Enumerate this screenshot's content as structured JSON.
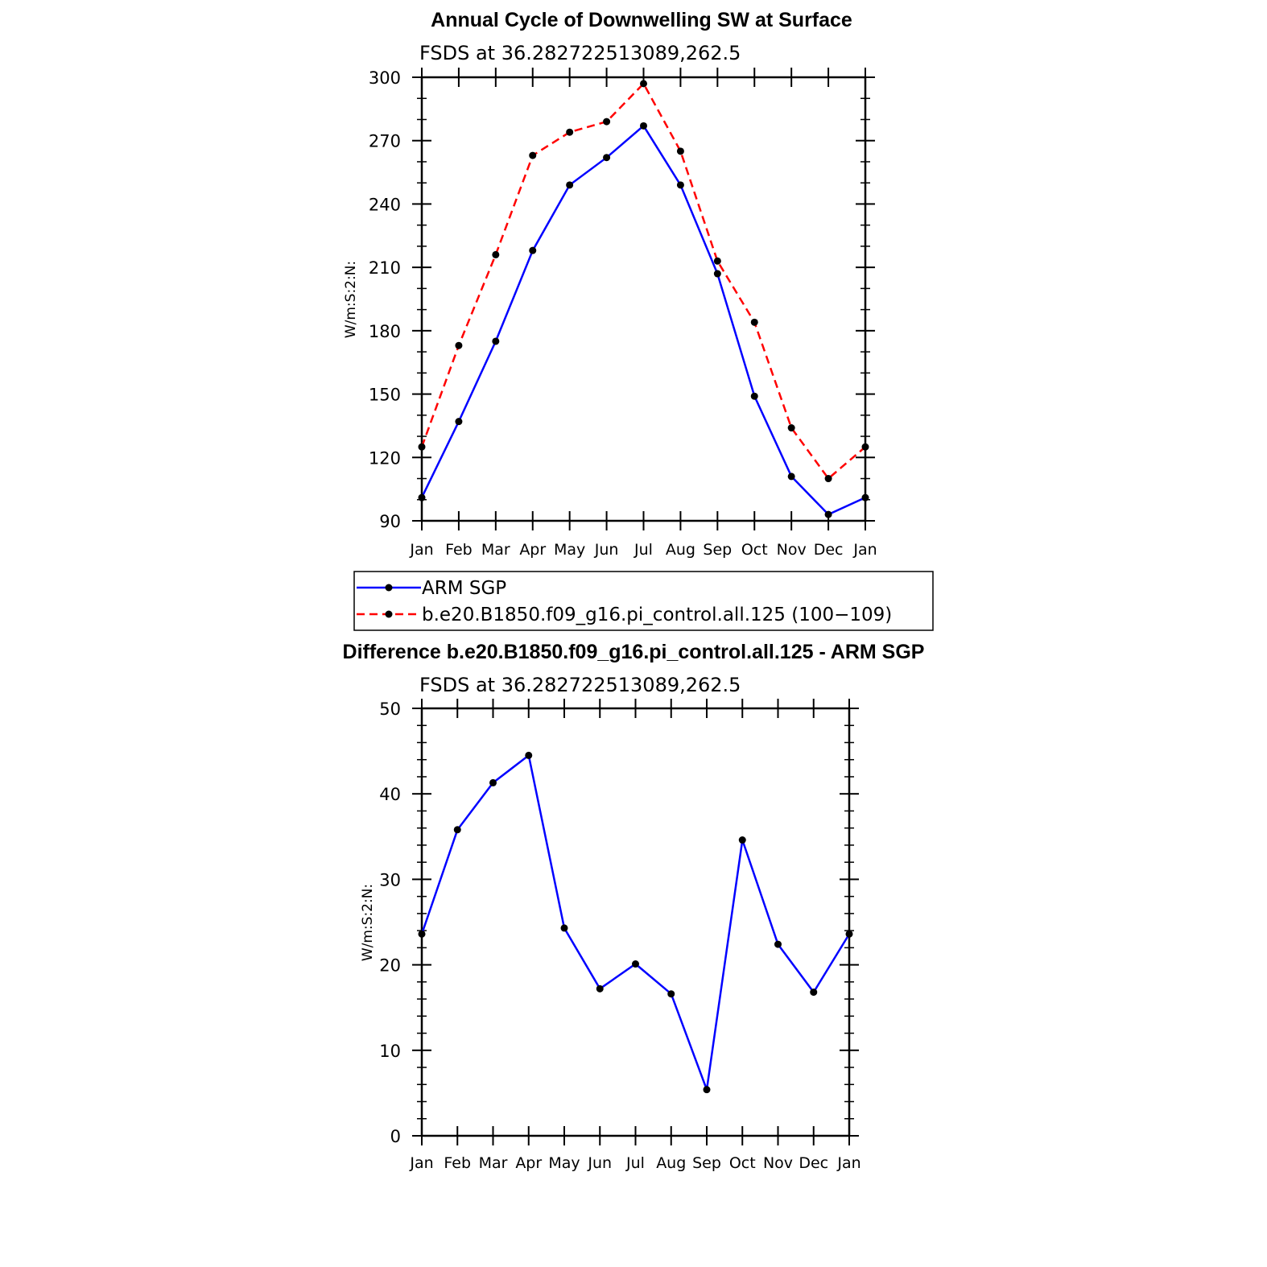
{
  "chart_data": [
    {
      "type": "line",
      "title": "Annual Cycle of Downwelling SW at Surface",
      "subtitle": "FSDS at 36.282722513089,262.5",
      "ylabel": "W/m:S:2:N:",
      "ylim": [
        90,
        300
      ],
      "yticks": [
        "90",
        "120",
        "150",
        "180",
        "210",
        "240",
        "270",
        "300"
      ],
      "categories": [
        "Jan",
        "Feb",
        "Mar",
        "Apr",
        "May",
        "Jun",
        "Jul",
        "Aug",
        "Sep",
        "Oct",
        "Nov",
        "Dec",
        "Jan"
      ],
      "series": [
        {
          "name": "ARM SGP",
          "color": "#0000ff",
          "dash": "solid",
          "values": [
            101,
            137,
            175,
            218,
            249,
            262,
            277,
            249,
            207,
            149,
            111,
            93,
            101
          ]
        },
        {
          "name": "b.e20.B1850.f09_g16.pi_control.all.125 (100−109)",
          "color": "#ff0000",
          "dash": "dashed",
          "values": [
            125,
            173,
            216,
            263,
            274,
            279,
            297,
            265,
            213,
            184,
            134,
            110,
            125
          ]
        }
      ],
      "legend_position": "below"
    },
    {
      "type": "line",
      "title": "Difference b.e20.B1850.f09_g16.pi_control.all.125 - ARM SGP",
      "subtitle": "FSDS at 36.282722513089,262.5",
      "ylabel": "W/m:S:2:N:",
      "ylim": [
        0,
        50
      ],
      "yticks": [
        "0",
        "10",
        "20",
        "30",
        "40",
        "50"
      ],
      "categories": [
        "Jan",
        "Feb",
        "Mar",
        "Apr",
        "May",
        "Jun",
        "Jul",
        "Aug",
        "Sep",
        "Oct",
        "Nov",
        "Dec",
        "Jan"
      ],
      "series": [
        {
          "color": "#0000ff",
          "dash": "solid",
          "values": [
            23.6,
            35.8,
            41.3,
            44.5,
            24.3,
            17.2,
            20.1,
            16.6,
            5.4,
            34.6,
            22.4,
            16.8,
            23.6
          ]
        }
      ]
    }
  ]
}
